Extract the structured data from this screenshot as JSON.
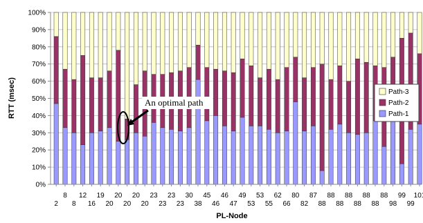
{
  "colors": {
    "path1": "#9999ff",
    "path2": "#993366",
    "path3": "#ffffcc",
    "bar_edge": "#333333",
    "grid": "#bbbbbb"
  },
  "chart_data": {
    "type": "bar",
    "stacked": true,
    "normalized": true,
    "xlabel": "PL-Node",
    "ylabel": "RTT (msec)",
    "ylim": [
      0,
      100
    ],
    "yticks": [
      "0%",
      "10%",
      "20%",
      "30%",
      "40%",
      "50%",
      "60%",
      "70%",
      "80%",
      "90%",
      "100%"
    ],
    "legend_position": "right",
    "grid": "horizontal",
    "categories": [
      "2",
      "8",
      "8",
      "12",
      "16",
      "19",
      "20",
      "20",
      "20",
      "20",
      "20",
      "23",
      "23",
      "23",
      "23",
      "30",
      "38",
      "45",
      "46",
      "46",
      "47",
      "49",
      "53",
      "53",
      "55",
      "62",
      "66",
      "80",
      "82",
      "87",
      "88",
      "88",
      "88",
      "88",
      "88",
      "88",
      "88",
      "88",
      "98",
      "99",
      "99",
      "101"
    ],
    "series": [
      {
        "name": "Path-1",
        "values": [
          47,
          33,
          30,
          23,
          30,
          31,
          33,
          25,
          26,
          30,
          28,
          36,
          33,
          32,
          31,
          33,
          61,
          37,
          40,
          34,
          31,
          39,
          34,
          34,
          32,
          30,
          31,
          48,
          31,
          34,
          8,
          32,
          35,
          30,
          29,
          30,
          37,
          22,
          39,
          12,
          32,
          35
        ]
      },
      {
        "name": "Path-2",
        "values": [
          39,
          34,
          31,
          52,
          32,
          31,
          33,
          53,
          12,
          28,
          38,
          28,
          31,
          33,
          35,
          35,
          20,
          31,
          27,
          32,
          34,
          34,
          35,
          28,
          35,
          31,
          37,
          26,
          31,
          34,
          62,
          29,
          34,
          30,
          44,
          41,
          32,
          46,
          35,
          73,
          56,
          41
        ]
      },
      {
        "name": "Path-3",
        "values": [
          14,
          33,
          39,
          25,
          38,
          38,
          34,
          22,
          62,
          42,
          34,
          36,
          36,
          35,
          34,
          32,
          19,
          32,
          33,
          34,
          35,
          27,
          31,
          38,
          33,
          39,
          32,
          26,
          38,
          32,
          30,
          39,
          31,
          40,
          27,
          29,
          31,
          32,
          26,
          15,
          12,
          24
        ]
      }
    ],
    "annotations": [
      {
        "text": "An optimal path"
      }
    ]
  }
}
